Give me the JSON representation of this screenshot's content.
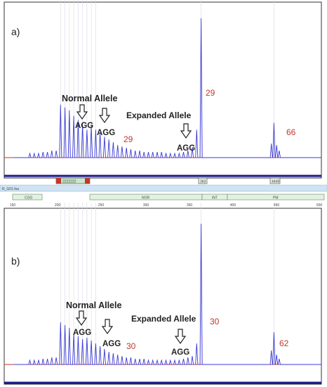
{
  "panels": [
    {
      "panel_label": "a)",
      "annotations": {
        "normal_allele": "Normal Allele",
        "expanded_allele": "Expanded Allele",
        "agg_1": "AGG",
        "agg_2": "AGG",
        "agg_3": "AGG",
        "count_normal": "29",
        "count_peak": "29",
        "count_far": "66"
      }
    },
    {
      "panel_label": "b)",
      "annotations": {
        "normal_allele": "Normal Allele",
        "expanded_allele": "Expanded Allele",
        "agg_1": "AGG",
        "agg_2": "AGG",
        "agg_3": "AGG",
        "count_normal": "30",
        "count_peak": "30",
        "count_far": "62"
      }
    }
  ],
  "track": {
    "file_label": "R_G01.fsa",
    "marker_left": "2222222",
    "marker_mid": "363",
    "marker_right": "4449",
    "segments": [
      "CGG",
      "NOR",
      "INT",
      "PM"
    ],
    "ticks": [
      "150",
      "200",
      "250",
      "300",
      "350",
      "400",
      "450",
      "500"
    ]
  },
  "colors": {
    "trace": "#3b3bd6",
    "baseline": "#c0392b",
    "axis": "#1a1a8a",
    "track_bg": "#cfe3f3",
    "segment_bg": "#e3f1e3",
    "count_text": "#c0392b"
  },
  "chart_data": [
    {
      "type": "line",
      "panel": "a",
      "xlabel": "",
      "ylabel": "",
      "xlim": [
        150,
        500
      ],
      "x": [
        168,
        173,
        178,
        183,
        188,
        193,
        198,
        203,
        208,
        213,
        218,
        223,
        228,
        233,
        238,
        243,
        248,
        253,
        258,
        263,
        268,
        273,
        278,
        283,
        288,
        293,
        298,
        303,
        308,
        313,
        318,
        323,
        328,
        333,
        338,
        343,
        348,
        353,
        358,
        363,
        443,
        446,
        449,
        452
      ],
      "values": [
        0.03,
        0.03,
        0.03,
        0.04,
        0.04,
        0.05,
        0.05,
        0.38,
        0.36,
        0.34,
        0.3,
        0.27,
        0.24,
        0.2,
        0.23,
        0.2,
        0.18,
        0.15,
        0.13,
        0.11,
        0.09,
        0.08,
        0.07,
        0.06,
        0.05,
        0.05,
        0.04,
        0.04,
        0.04,
        0.04,
        0.04,
        0.03,
        0.03,
        0.03,
        0.03,
        0.04,
        0.05,
        0.07,
        0.2,
        1.0,
        0.1,
        0.25,
        0.09,
        0.05
      ]
    },
    {
      "type": "line",
      "panel": "b",
      "xlabel": "",
      "ylabel": "",
      "xlim": [
        150,
        500
      ],
      "x": [
        168,
        173,
        178,
        183,
        188,
        193,
        198,
        203,
        208,
        213,
        218,
        223,
        228,
        233,
        238,
        243,
        248,
        253,
        258,
        263,
        268,
        273,
        278,
        283,
        288,
        293,
        298,
        303,
        308,
        313,
        318,
        323,
        328,
        333,
        338,
        343,
        348,
        353,
        358,
        363,
        443,
        446,
        449,
        452
      ],
      "values": [
        0.03,
        0.03,
        0.03,
        0.04,
        0.04,
        0.05,
        0.05,
        0.3,
        0.28,
        0.26,
        0.22,
        0.2,
        0.18,
        0.19,
        0.17,
        0.15,
        0.13,
        0.11,
        0.09,
        0.08,
        0.07,
        0.06,
        0.05,
        0.05,
        0.04,
        0.04,
        0.04,
        0.03,
        0.03,
        0.03,
        0.03,
        0.03,
        0.03,
        0.03,
        0.03,
        0.04,
        0.05,
        0.06,
        0.15,
        1.0,
        0.1,
        0.23,
        0.07,
        0.04
      ]
    }
  ]
}
